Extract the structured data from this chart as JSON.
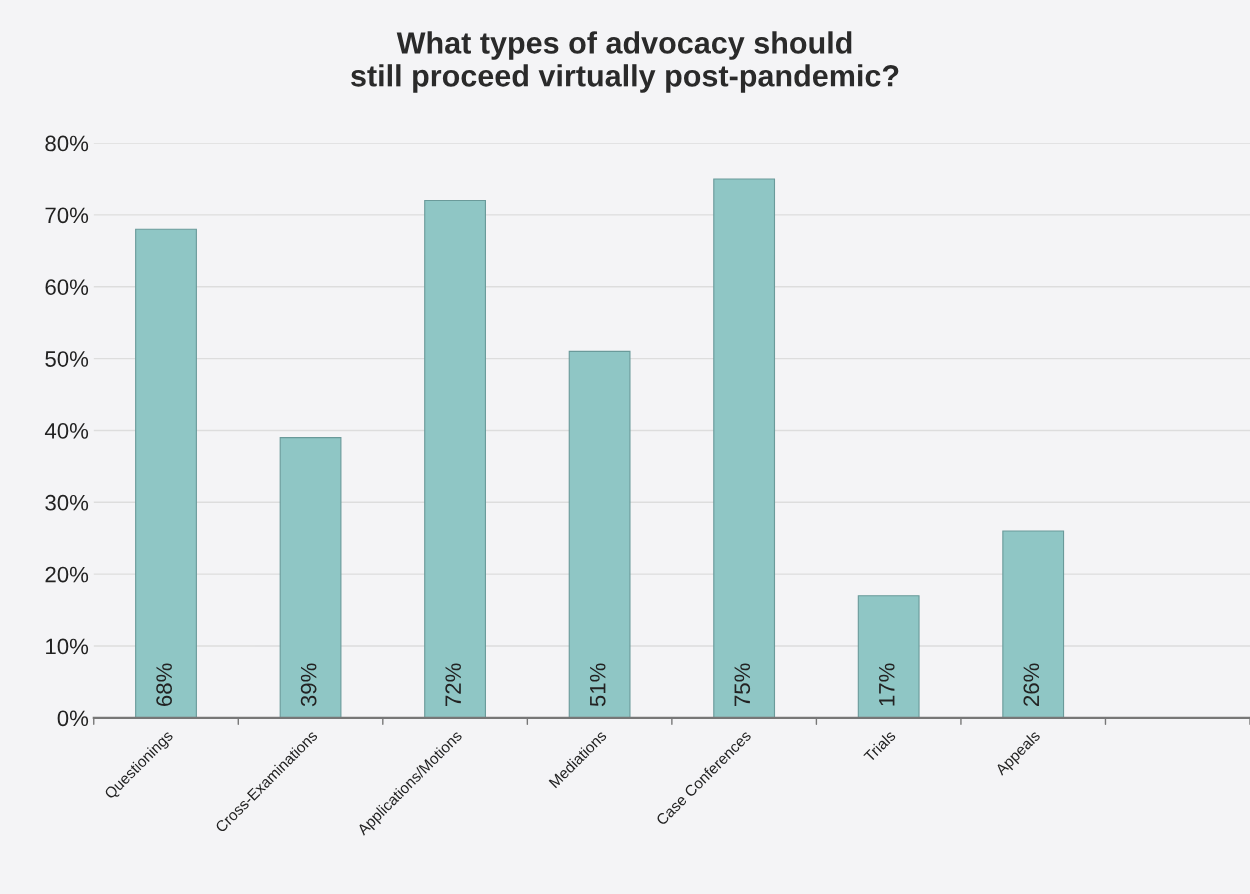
{
  "chart_data": {
    "type": "bar",
    "title": "What types of advocacy should\nstill proceed virtually post-pandemic?",
    "categories": [
      "Questionings",
      "Cross-Examinations",
      "Applications/Motions",
      "Mediations",
      "Case Conferences",
      "Trials",
      "Appeals",
      null
    ],
    "values": [
      68,
      39,
      72,
      51,
      75,
      17,
      26,
      null
    ],
    "value_labels": [
      "68%",
      "39%",
      "72%",
      "51%",
      "75%",
      "17%",
      "26%",
      null
    ],
    "color": "#8fc6c5",
    "ylim": [
      0,
      80
    ],
    "yticks": [
      {
        "value": 0,
        "label": "0%"
      },
      {
        "value": 10,
        "label": "10%"
      },
      {
        "value": 20,
        "label": "20%"
      },
      {
        "value": 30,
        "label": "30%"
      },
      {
        "value": 40,
        "label": "40%"
      },
      {
        "value": 50,
        "label": "50%"
      },
      {
        "value": 60,
        "label": "60%"
      },
      {
        "value": 70,
        "label": "70%"
      },
      {
        "value": 80,
        "label": "80%"
      }
    ],
    "grid": "y"
  }
}
